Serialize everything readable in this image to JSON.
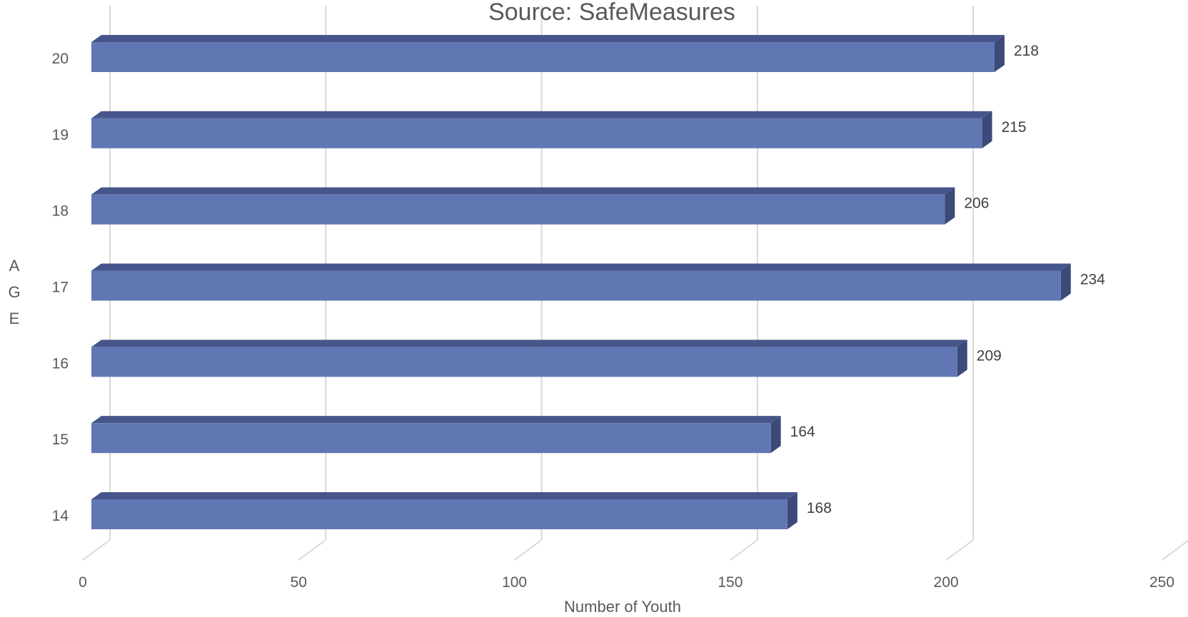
{
  "chart_data": {
    "type": "bar",
    "orientation": "horizontal",
    "title": "Source: SafeMeasures",
    "xlabel": "Number of Youth",
    "ylabel": "AGE",
    "categories": [
      "14",
      "15",
      "16",
      "17",
      "18",
      "19",
      "20"
    ],
    "values": [
      168,
      164,
      209,
      234,
      206,
      215,
      218
    ],
    "xlim": [
      0,
      250
    ],
    "xticks": [
      "0",
      "50",
      "100",
      "150",
      "200",
      "250"
    ],
    "grid": true,
    "legend": "none",
    "style": "3d-bar",
    "colors": {
      "bar_front": "#6177b4",
      "bar_top": "#46568a",
      "bar_side": "#3b4a78",
      "grid": "#d9d9d9"
    }
  }
}
